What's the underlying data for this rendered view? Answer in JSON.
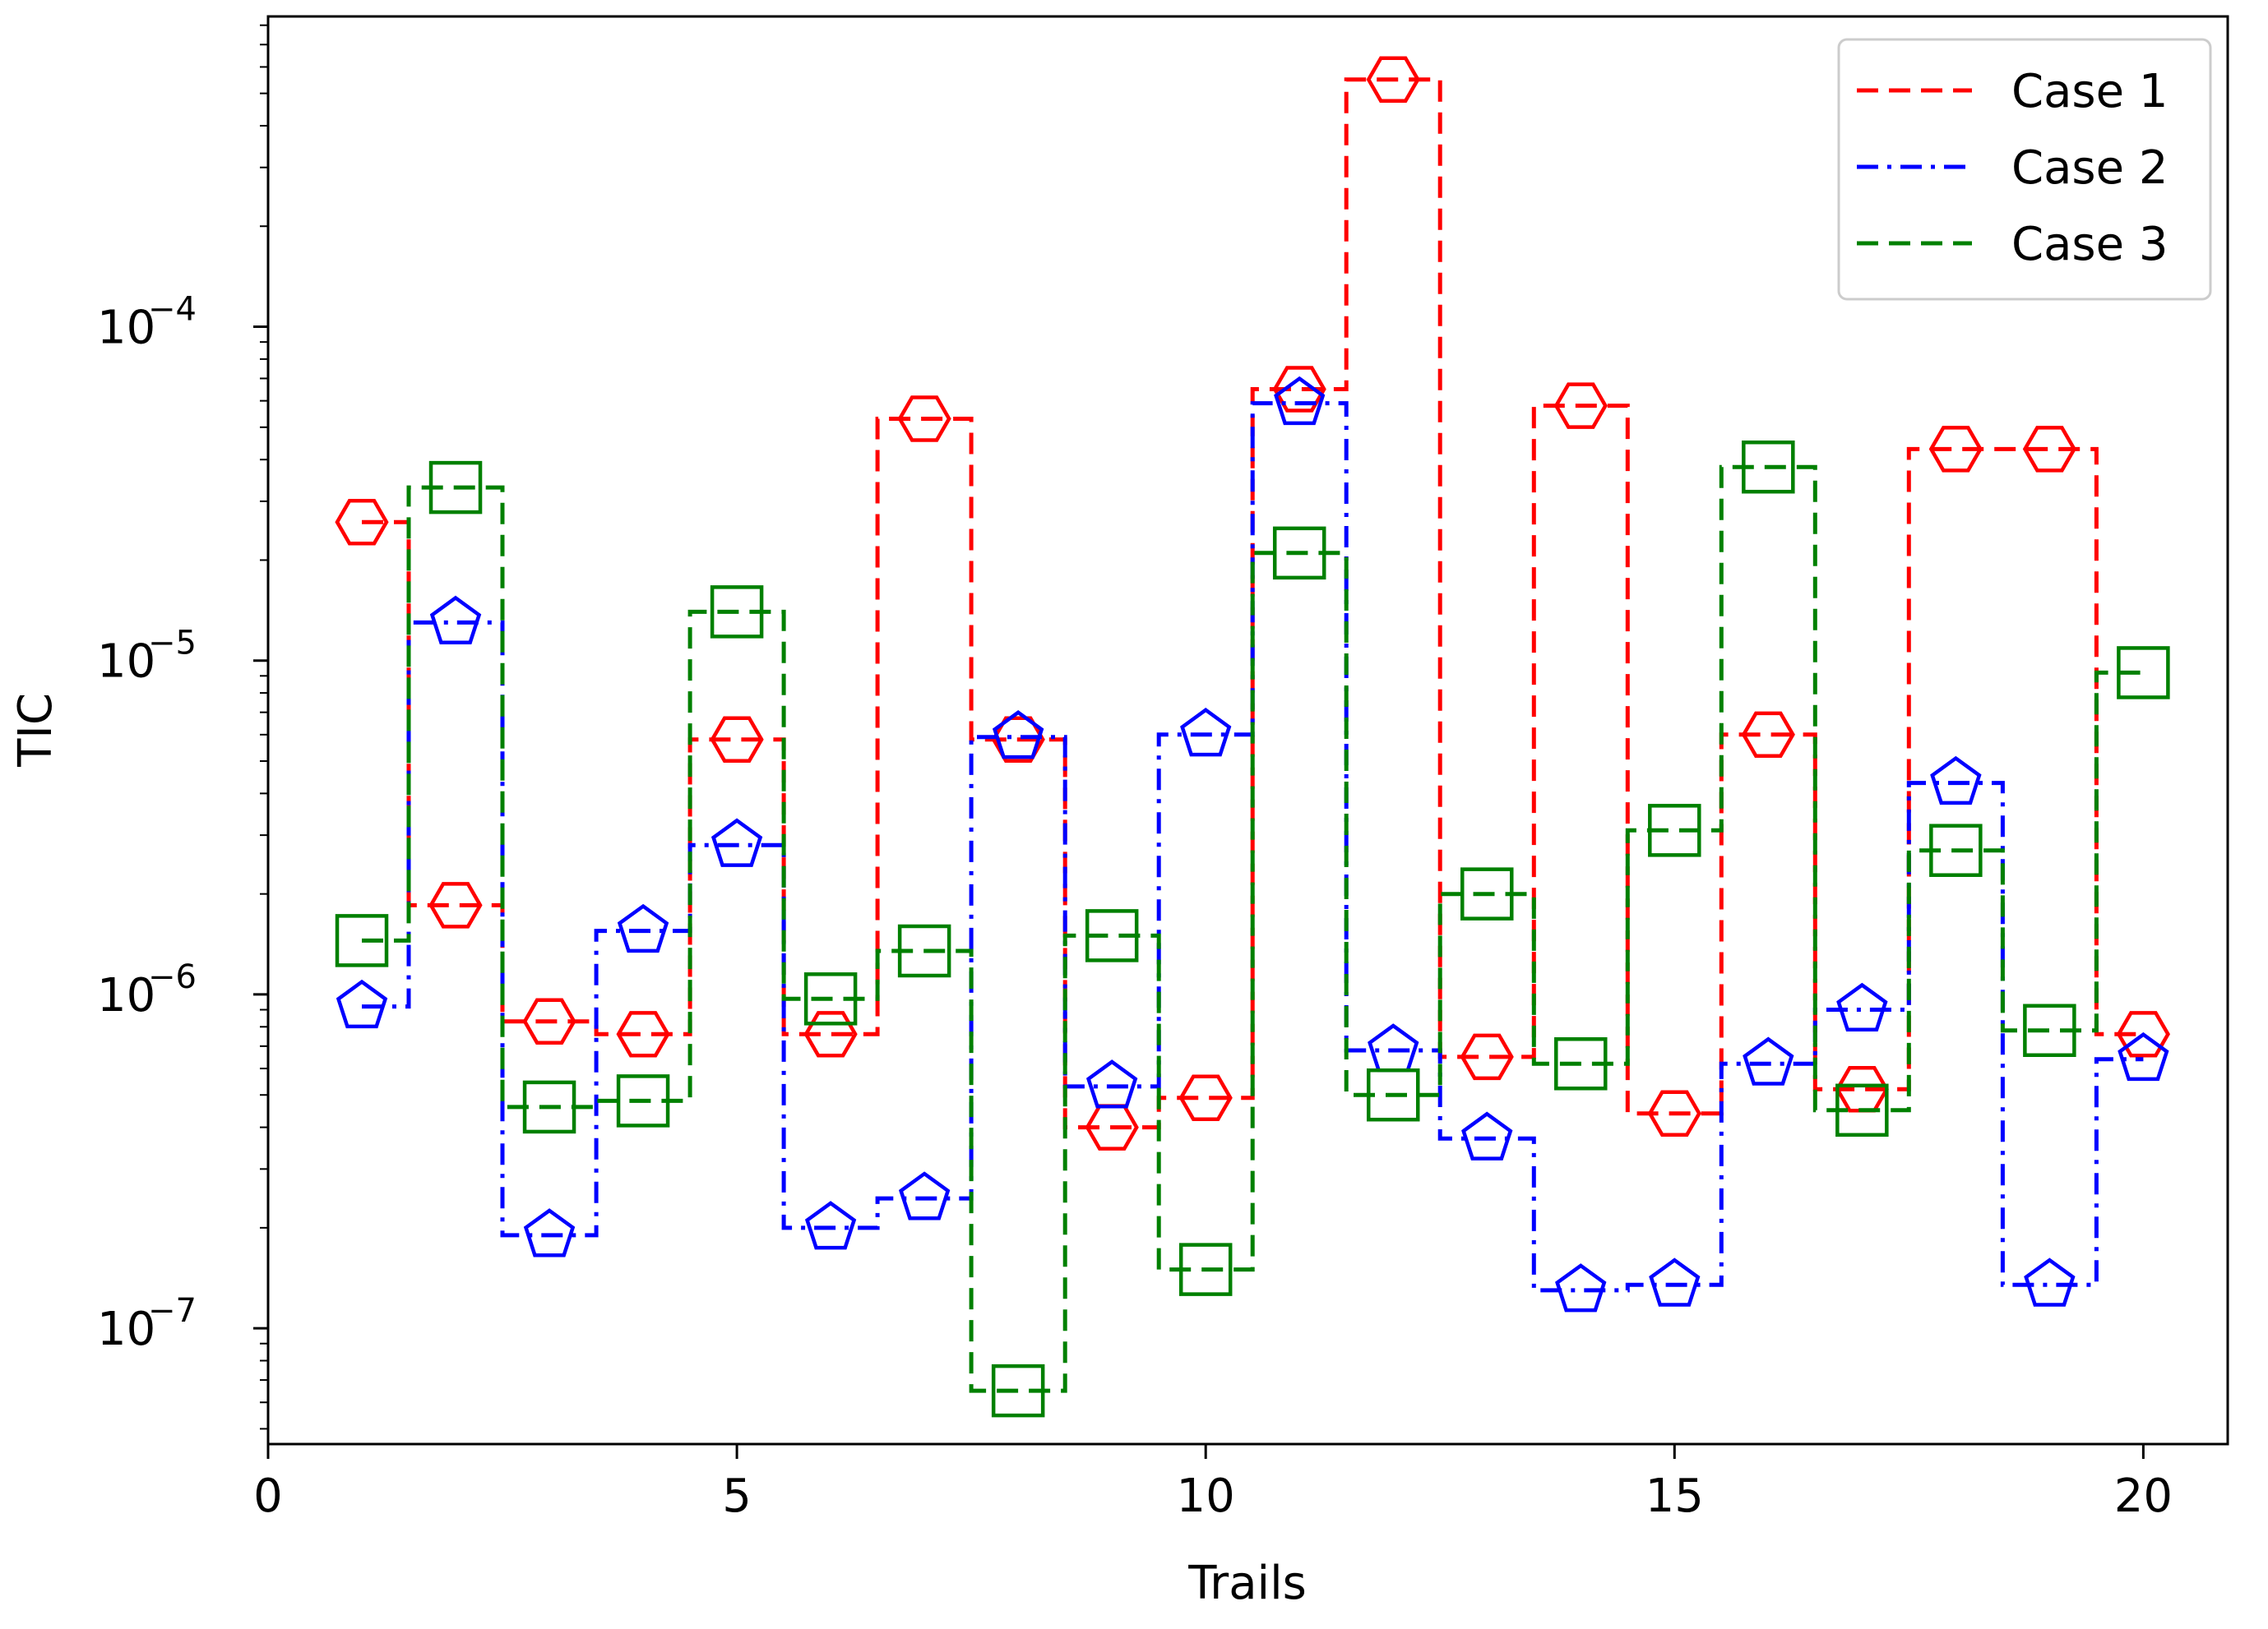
{
  "chart_data": {
    "type": "line",
    "style": "step-mid",
    "title": "",
    "xlabel": "Trails",
    "ylabel": "TIC",
    "yscale": "log",
    "xlim": [
      0,
      20.9
    ],
    "ylim": [
      4.5e-08,
      0.00085
    ],
    "x_ticks": [
      0,
      5,
      10,
      15,
      20
    ],
    "x_tick_labels": [
      "0",
      "5",
      "10",
      "15",
      "20"
    ],
    "y_ticks": [
      1e-07,
      1e-06,
      1e-05,
      0.0001
    ],
    "y_tick_labels": [
      {
        "base": "10",
        "exp": "−7"
      },
      {
        "base": "10",
        "exp": "−6"
      },
      {
        "base": "10",
        "exp": "−5"
      },
      {
        "base": "10",
        "exp": "−4"
      }
    ],
    "legend": {
      "position": "top-right",
      "show": true
    },
    "x": [
      1,
      2,
      3,
      4,
      5,
      6,
      7,
      8,
      9,
      10,
      11,
      12,
      13,
      14,
      15,
      16,
      17,
      18,
      19,
      20
    ],
    "series": [
      {
        "name": "Case 1",
        "color": "#ff0000",
        "dash": "dashed",
        "marker": "hexagon",
        "values": [
          2.6e-05,
          1.85e-06,
          8.3e-07,
          7.6e-07,
          5.8e-06,
          7.6e-07,
          5.3e-05,
          5.8e-06,
          4e-07,
          4.9e-07,
          6.5e-05,
          0.00055,
          6.5e-07,
          5.8e-05,
          4.4e-07,
          6e-06,
          5.2e-07,
          4.3e-05,
          4.3e-05,
          7.6e-07
        ]
      },
      {
        "name": "Case 2",
        "color": "#0000ff",
        "dash": "dashdot",
        "marker": "pentagon",
        "values": [
          9.2e-07,
          1.3e-05,
          1.9e-07,
          1.55e-06,
          2.8e-06,
          2e-07,
          2.45e-07,
          5.9e-06,
          5.3e-07,
          6e-06,
          5.9e-05,
          6.8e-07,
          3.7e-07,
          1.3e-07,
          1.35e-07,
          6.2e-07,
          9e-07,
          4.3e-06,
          1.35e-07,
          6.4e-07
        ]
      },
      {
        "name": "Case 3",
        "color": "#008000",
        "dash": "dashed",
        "marker": "square",
        "values": [
          1.45e-06,
          3.3e-05,
          4.6e-07,
          4.8e-07,
          1.4e-05,
          9.7e-07,
          1.35e-06,
          6.5e-08,
          1.5e-06,
          1.5e-07,
          2.1e-05,
          5e-07,
          2e-06,
          6.2e-07,
          3.1e-06,
          3.8e-05,
          4.5e-07,
          2.7e-06,
          7.8e-07,
          9.2e-06
        ]
      }
    ]
  }
}
